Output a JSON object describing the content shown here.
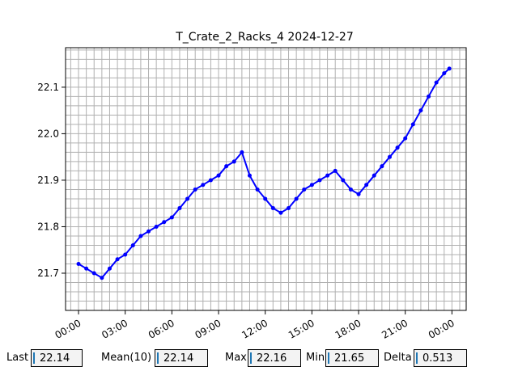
{
  "colors": {
    "series": "#0000ff",
    "grid": "#b0b0b0",
    "field_bg": "#f3f3f3",
    "cursor": "#1f77b4"
  },
  "stats": {
    "last": {
      "label": "Last",
      "value": "22.14"
    },
    "mean": {
      "label": "Mean(10)",
      "value": "22.14"
    },
    "max": {
      "label": "Max",
      "value": "22.16"
    },
    "min": {
      "label": "Min",
      "value": "21.65"
    },
    "delta": {
      "label": "Delta",
      "value": "0.513"
    }
  },
  "chart_data": {
    "type": "line",
    "title": "T_Crate_2_Racks_4 2024-12-27",
    "xlabel": "",
    "ylabel": "",
    "xlim": [
      "2024-12-26T23:10",
      "2024-12-28T00:55"
    ],
    "ylim": [
      21.62,
      22.185
    ],
    "x_tick_labels": [
      "00:00",
      "03:00",
      "06:00",
      "09:00",
      "12:00",
      "15:00",
      "18:00",
      "21:00",
      "00:00"
    ],
    "x_tick_values": [
      "2024-12-27T00:00",
      "2024-12-27T03:00",
      "2024-12-27T06:00",
      "2024-12-27T09:00",
      "2024-12-27T12:00",
      "2024-12-27T15:00",
      "2024-12-27T18:00",
      "2024-12-27T21:00",
      "2024-12-28T00:00"
    ],
    "y_tick_labels": [
      "21.7",
      "21.8",
      "21.9",
      "22.0",
      "22.1"
    ],
    "y_tick_values": [
      21.7,
      21.8,
      21.9,
      22.0,
      22.1
    ],
    "grid": true,
    "series": [
      {
        "marker": "circle",
        "x": [
          "2024-12-27T00:00",
          "2024-12-27T00:30",
          "2024-12-27T01:00",
          "2024-12-27T01:30",
          "2024-12-27T02:00",
          "2024-12-27T02:30",
          "2024-12-27T03:00",
          "2024-12-27T03:30",
          "2024-12-27T04:00",
          "2024-12-27T04:30",
          "2024-12-27T05:00",
          "2024-12-27T05:30",
          "2024-12-27T06:00",
          "2024-12-27T06:30",
          "2024-12-27T07:00",
          "2024-12-27T07:30",
          "2024-12-27T08:00",
          "2024-12-27T08:30",
          "2024-12-27T09:00",
          "2024-12-27T09:30",
          "2024-12-27T10:00",
          "2024-12-27T10:30",
          "2024-12-27T11:00",
          "2024-12-27T11:30",
          "2024-12-27T12:00",
          "2024-12-27T12:30",
          "2024-12-27T13:00",
          "2024-12-27T13:30",
          "2024-12-27T14:00",
          "2024-12-27T14:30",
          "2024-12-27T15:00",
          "2024-12-27T15:30",
          "2024-12-27T16:00",
          "2024-12-27T16:30",
          "2024-12-27T17:00",
          "2024-12-27T17:30",
          "2024-12-27T18:00",
          "2024-12-27T18:30",
          "2024-12-27T19:00",
          "2024-12-27T19:30",
          "2024-12-27T20:00",
          "2024-12-27T20:30",
          "2024-12-27T21:00",
          "2024-12-27T21:30",
          "2024-12-27T22:00",
          "2024-12-27T22:30",
          "2024-12-27T23:00",
          "2024-12-27T23:30",
          "2024-12-27T23:50"
        ],
        "y": [
          21.72,
          21.71,
          21.7,
          21.69,
          21.71,
          21.73,
          21.74,
          21.76,
          21.78,
          21.79,
          21.8,
          21.81,
          21.82,
          21.84,
          21.86,
          21.88,
          21.89,
          21.9,
          21.91,
          21.93,
          21.94,
          21.96,
          21.91,
          21.88,
          21.86,
          21.84,
          21.83,
          21.84,
          21.86,
          21.88,
          21.89,
          21.9,
          21.91,
          21.92,
          21.9,
          21.88,
          21.87,
          21.89,
          21.91,
          21.93,
          21.95,
          21.97,
          21.99,
          22.02,
          22.05,
          22.08,
          22.11,
          22.13,
          22.14
        ]
      }
    ]
  }
}
